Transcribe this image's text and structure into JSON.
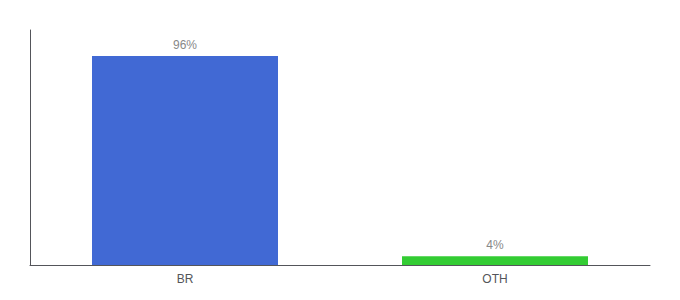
{
  "chart_data": {
    "type": "bar",
    "categories": [
      "BR",
      "OTH"
    ],
    "values": [
      96,
      4
    ],
    "value_labels": [
      "96%",
      "4%"
    ],
    "data_labels": true,
    "colors": [
      "#4169d4",
      "#33cc33"
    ],
    "ylim": [
      0,
      108
    ],
    "tick_labels": "x",
    "grid": false
  }
}
